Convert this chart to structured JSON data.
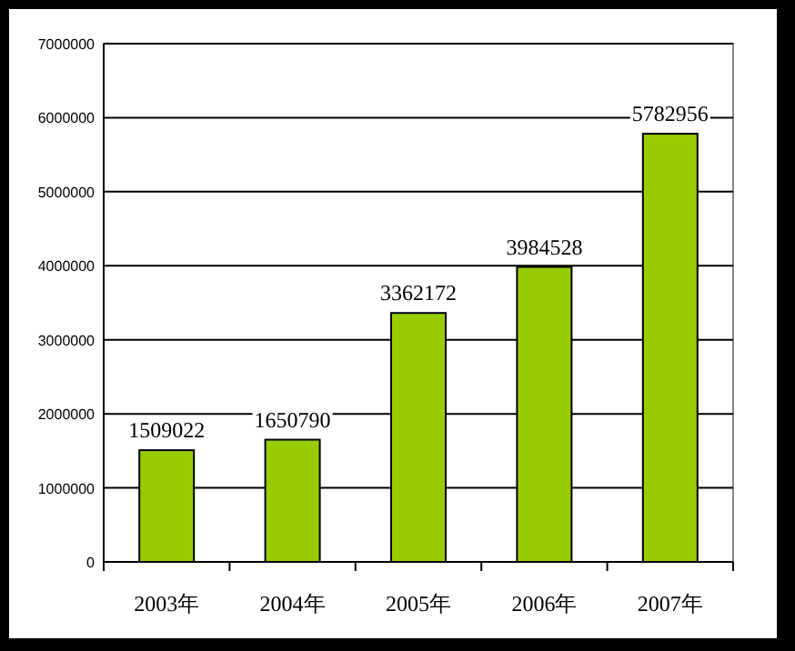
{
  "chart_data": {
    "type": "bar",
    "categories": [
      "2003年",
      "2004年",
      "2005年",
      "2006年",
      "2007年"
    ],
    "values": [
      1509022,
      1650790,
      3362172,
      3984528,
      5782956
    ],
    "color": "#99cc00",
    "ylim": [
      0,
      7000000
    ],
    "yticks": [
      0,
      1000000,
      2000000,
      3000000,
      4000000,
      5000000,
      6000000,
      7000000
    ],
    "grid": "y",
    "data_labels": true
  }
}
